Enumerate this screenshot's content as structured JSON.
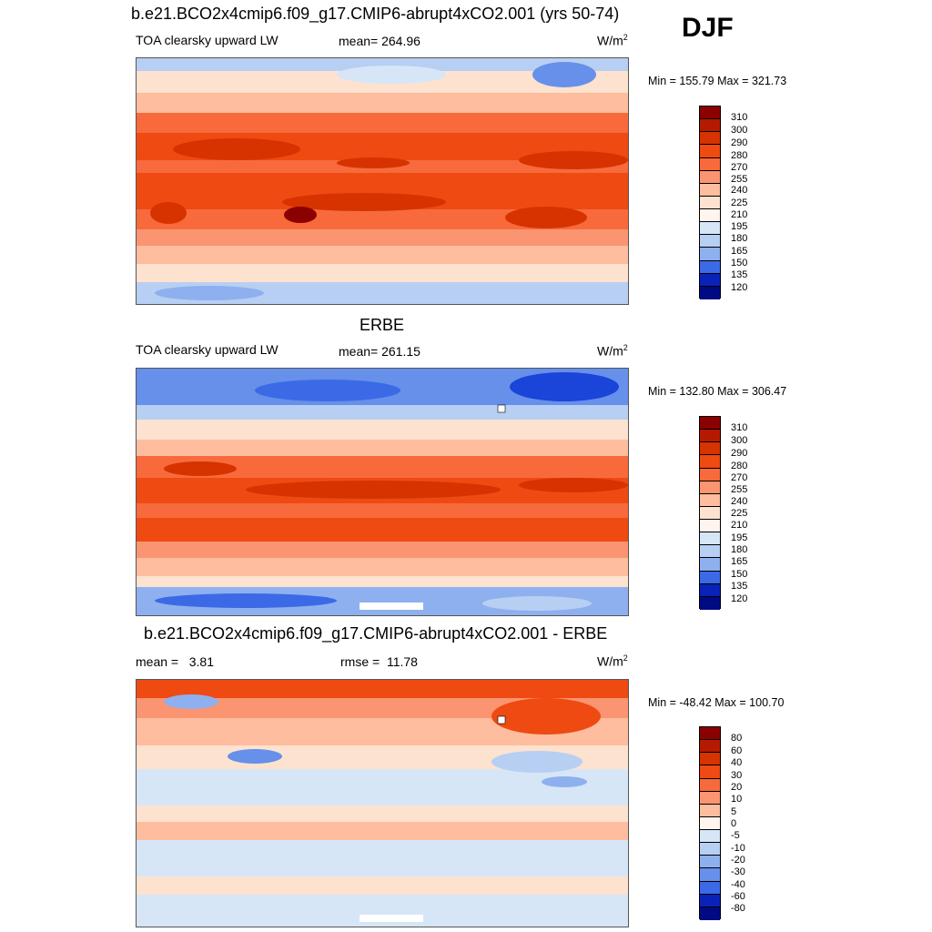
{
  "season": "DJF",
  "panels": [
    {
      "title": "b.e21.BCO2x4cmip6.f09_g17.CMIP6-abrupt4xCO2.001 (yrs 50-74)",
      "left_label": "TOA clearsky upward LW",
      "center_label": "mean= 264.96",
      "units": "W/m",
      "units_sup": "2",
      "minmax": "Min = 155.79 Max = 321.73",
      "colorbar_levels": [
        "310",
        "300",
        "290",
        "280",
        "270",
        "255",
        "240",
        "225",
        "210",
        "195",
        "180",
        "165",
        "150",
        "135",
        "120"
      ]
    },
    {
      "title": "ERBE",
      "left_label": "TOA clearsky upward LW",
      "center_label": "mean= 261.15",
      "units": "W/m",
      "units_sup": "2",
      "minmax": "Min = 132.80 Max = 306.47",
      "colorbar_levels": [
        "310",
        "300",
        "290",
        "280",
        "270",
        "255",
        "240",
        "225",
        "210",
        "195",
        "180",
        "165",
        "150",
        "135",
        "120"
      ]
    },
    {
      "title": "b.e21.BCO2x4cmip6.f09_g17.CMIP6-abrupt4xCO2.001 - ERBE",
      "left_label": "mean =   3.81",
      "center_label": "rmse =  11.78",
      "units": "W/m",
      "units_sup": "2",
      "minmax": "Min = -48.42 Max = 100.70",
      "colorbar_levels": [
        "80",
        "60",
        "40",
        "30",
        "20",
        "10",
        "5",
        "0",
        "-5",
        "-10",
        "-20",
        "-30",
        "-40",
        "-60",
        "-80"
      ]
    }
  ],
  "colors": {
    "palette": [
      "#8b0000",
      "#b51a00",
      "#d63300",
      "#ee4a12",
      "#f86a3c",
      "#fb9470",
      "#fdbd9e",
      "#fde2cf",
      "#fff5ee",
      "#d6e6f7",
      "#b7cff2",
      "#8fb0ee",
      "#6690ea",
      "#3c6ae6",
      "#1b44d9",
      "#0a22b8",
      "#000a82"
    ]
  }
}
